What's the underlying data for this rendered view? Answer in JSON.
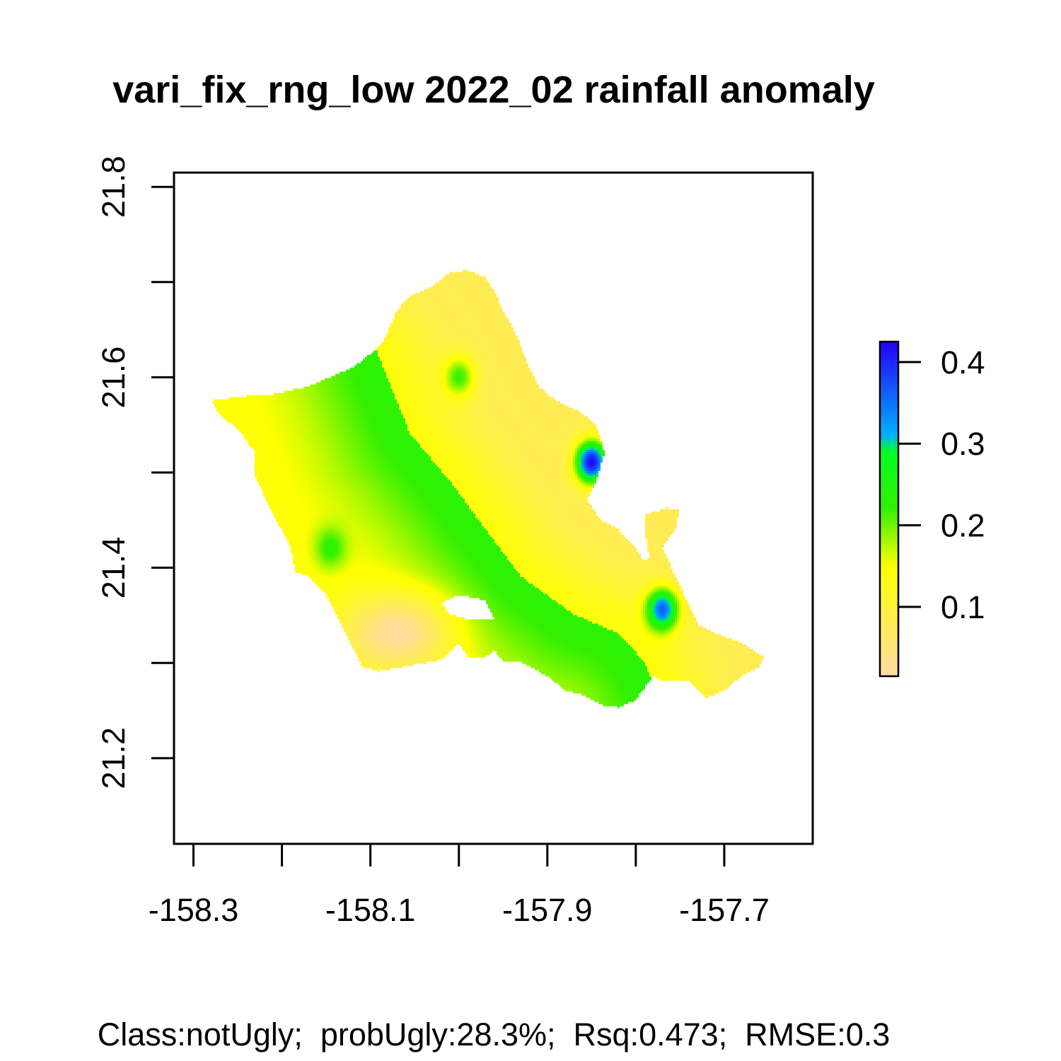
{
  "title": "vari_fix_rng_low 2022_02 rainfall anomaly",
  "footer": "Class:notUgly;  probUgly:28.3%;  Rsq:0.473;  RMSE:0.3",
  "chart_data": {
    "type": "heatmap",
    "title": "vari_fix_rng_low 2022_02 rainfall anomaly",
    "xlabel": "",
    "ylabel": "",
    "x_ticks": [
      -158.3,
      -158.2,
      -158.1,
      -158.0,
      -157.9,
      -157.8,
      -157.7
    ],
    "x_tick_labels": [
      "-158.3",
      "",
      "-158.1",
      "",
      "-157.9",
      "",
      "-157.7"
    ],
    "y_ticks": [
      21.2,
      21.3,
      21.4,
      21.5,
      21.6,
      21.7,
      21.8
    ],
    "y_tick_labels": [
      "21.2",
      "",
      "21.4",
      "",
      "21.6",
      "",
      "21.8"
    ],
    "xlim": [
      -158.322,
      -157.6
    ],
    "ylim": [
      21.11,
      21.815
    ],
    "legend": {
      "placement": "right",
      "ticks": [
        0.1,
        0.2,
        0.3,
        0.4
      ],
      "tick_labels": [
        "0.1",
        "0.2",
        "0.3",
        "0.4"
      ],
      "range": [
        0.015,
        0.425
      ],
      "stops": [
        {
          "value": 0.015,
          "color": "#FFDBA3"
        },
        {
          "value": 0.15,
          "color": "#FFFF00"
        },
        {
          "value": 0.22,
          "color": "#33F000"
        },
        {
          "value": 0.29,
          "color": "#00FF22"
        },
        {
          "value": 0.31,
          "color": "#00B0FF"
        },
        {
          "value": 0.425,
          "color": "#2200FF"
        }
      ]
    },
    "boundary": [
      [
        -158.28,
        21.575
      ],
      [
        -158.24,
        21.58
      ],
      [
        -158.21,
        21.582
      ],
      [
        -158.17,
        21.59
      ],
      [
        -158.12,
        21.61
      ],
      [
        -158.105,
        21.62
      ],
      [
        -158.085,
        21.638
      ],
      [
        -158.07,
        21.67
      ],
      [
        -158.055,
        21.685
      ],
      [
        -158.03,
        21.695
      ],
      [
        -158.01,
        21.71
      ],
      [
        -157.99,
        21.712
      ],
      [
        -157.97,
        21.705
      ],
      [
        -157.96,
        21.69
      ],
      [
        -157.95,
        21.67
      ],
      [
        -157.935,
        21.645
      ],
      [
        -157.925,
        21.62
      ],
      [
        -157.91,
        21.59
      ],
      [
        -157.89,
        21.575
      ],
      [
        -157.875,
        21.568
      ],
      [
        -157.865,
        21.565
      ],
      [
        -157.845,
        21.55
      ],
      [
        -157.835,
        21.52
      ],
      [
        -157.845,
        21.49
      ],
      [
        -157.855,
        21.47
      ],
      [
        -157.84,
        21.45
      ],
      [
        -157.82,
        21.44
      ],
      [
        -157.8,
        21.42
      ],
      [
        -157.79,
        21.405
      ],
      [
        -157.785,
        21.41
      ],
      [
        -157.79,
        21.44
      ],
      [
        -157.79,
        21.455
      ],
      [
        -157.765,
        21.462
      ],
      [
        -157.75,
        21.46
      ],
      [
        -157.755,
        21.44
      ],
      [
        -157.77,
        21.42
      ],
      [
        -157.76,
        21.4
      ],
      [
        -157.745,
        21.37
      ],
      [
        -157.73,
        21.34
      ],
      [
        -157.71,
        21.33
      ],
      [
        -157.68,
        21.32
      ],
      [
        -157.655,
        21.305
      ],
      [
        -157.66,
        21.295
      ],
      [
        -157.68,
        21.285
      ],
      [
        -157.7,
        21.27
      ],
      [
        -157.72,
        21.262
      ],
      [
        -157.73,
        21.27
      ],
      [
        -157.74,
        21.28
      ],
      [
        -157.77,
        21.28
      ],
      [
        -157.78,
        21.285
      ],
      [
        -157.8,
        21.26
      ],
      [
        -157.82,
        21.252
      ],
      [
        -157.84,
        21.255
      ],
      [
        -157.86,
        21.265
      ],
      [
        -157.88,
        21.27
      ],
      [
        -157.9,
        21.285
      ],
      [
        -157.93,
        21.3
      ],
      [
        -157.95,
        21.3
      ],
      [
        -157.96,
        21.312
      ],
      [
        -157.97,
        21.305
      ],
      [
        -157.99,
        21.305
      ],
      [
        -158.0,
        21.32
      ],
      [
        -158.02,
        21.302
      ],
      [
        -158.05,
        21.297
      ],
      [
        -158.09,
        21.29
      ],
      [
        -158.11,
        21.295
      ],
      [
        -158.125,
        21.325
      ],
      [
        -158.15,
        21.37
      ],
      [
        -158.17,
        21.39
      ],
      [
        -158.185,
        21.395
      ],
      [
        -158.19,
        21.42
      ],
      [
        -158.215,
        21.465
      ],
      [
        -158.23,
        21.495
      ],
      [
        -158.23,
        21.52
      ],
      [
        -158.25,
        21.545
      ],
      [
        -158.27,
        21.56
      ],
      [
        -158.28,
        21.575
      ]
    ],
    "holes": [
      [
        [
          -158.02,
          21.362
        ],
        [
          -158.0,
          21.37
        ],
        [
          -157.97,
          21.365
        ],
        [
          -157.96,
          21.345
        ],
        [
          -157.99,
          21.345
        ],
        [
          -158.01,
          21.35
        ]
      ]
    ],
    "field": {
      "background": 0.14,
      "ridge_line": [
        [
          -158.09,
          21.62
        ],
        [
          -158.055,
          21.54
        ],
        [
          -158.01,
          21.49
        ],
        [
          -157.97,
          21.44
        ],
        [
          -157.93,
          21.39
        ],
        [
          -157.87,
          21.35
        ],
        [
          -157.82,
          21.33
        ],
        [
          -157.79,
          21.3
        ],
        [
          -157.77,
          21.25
        ]
      ],
      "peaks": [
        {
          "lon": -158.0,
          "lat": 21.6,
          "value": 0.22
        },
        {
          "lon": -157.85,
          "lat": 21.51,
          "value": 0.42
        },
        {
          "lon": -157.77,
          "lat": 21.355,
          "value": 0.36
        },
        {
          "lon": -158.145,
          "lat": 21.42,
          "value": 0.23
        }
      ],
      "lows": [
        {
          "lon": -158.07,
          "lat": 21.33,
          "value": 0.02
        }
      ]
    }
  }
}
